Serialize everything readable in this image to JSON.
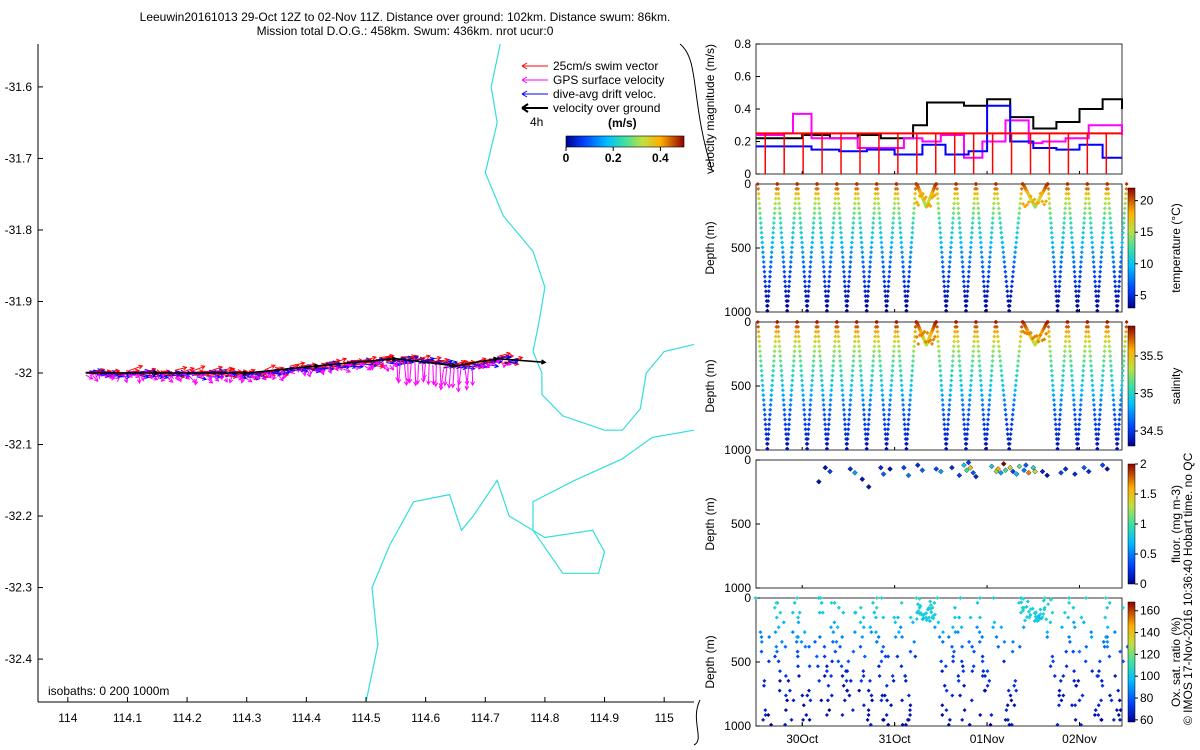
{
  "title": {
    "line1": "Leeuwin20161013 29-Oct 12Z to 02-Nov 11Z. Distance over ground: 102km. Distance swum: 86km.",
    "line2": "Mission total D.O.G.: 458km. Swum: 436km. nrot ucur:0"
  },
  "chart_data": [
    {
      "type": "map",
      "xlim": [
        113.95,
        115.05
      ],
      "ylim": [
        -32.46,
        -31.54
      ],
      "xticks": [
        "114",
        "114.1",
        "114.2",
        "114.3",
        "114.4",
        "114.5",
        "114.6",
        "114.7",
        "114.8",
        "114.9",
        "115"
      ],
      "xtick_values": [
        114,
        114.1,
        114.2,
        114.3,
        114.4,
        114.5,
        114.6,
        114.7,
        114.8,
        114.9,
        115
      ],
      "yticks": [
        "-31.6",
        "-31.7",
        "-31.8",
        "-31.9",
        "-32",
        "-32.1",
        "-32.2",
        "-32.3",
        "-32.4"
      ],
      "ytick_values": [
        -31.6,
        -31.7,
        -31.8,
        -31.9,
        -32.0,
        -32.1,
        -32.2,
        -32.3,
        -32.4
      ],
      "legend": {
        "placement": "top-right",
        "entries": [
          {
            "label": "25cm/s swim vector",
            "color": "#ff0000"
          },
          {
            "label": "GPS surface velocity",
            "color": "#ff00ff"
          },
          {
            "label": "dive-avg drift veloc.",
            "color": "#0000ff"
          },
          {
            "label": "velocity over ground",
            "color": "#000000"
          }
        ],
        "time_marker": "4h",
        "colorbar_title": "(m/s)",
        "colorbar_ticks": [
          "0",
          "0.2",
          "0.4"
        ],
        "colorbar_values": [
          0,
          0.2,
          0.4
        ],
        "colorbar_range": [
          0,
          0.5
        ]
      },
      "isobaths_label": "isobaths: 0   200  1000m",
      "track": {
        "lon": [
          114.03,
          114.15,
          114.3,
          114.42,
          114.55,
          114.65,
          114.72,
          114.8
        ],
        "lat": [
          -32.0,
          -32.0,
          -32.0,
          -31.99,
          -31.98,
          -31.99,
          -31.98,
          -31.985
        ]
      },
      "isobath_color": "#33dddd"
    },
    {
      "type": "line",
      "ylabel": "velocity magnitude (m/s)",
      "ylim": [
        0,
        0.8
      ],
      "yticks": [
        "0",
        "0.2",
        "0.4",
        "0.6",
        "0.8"
      ],
      "ytick_values": [
        0,
        0.2,
        0.4,
        0.6,
        0.8
      ],
      "xlim": [
        29.5,
        33.46
      ],
      "series": [
        {
          "color": "#000000",
          "x": [
            29.5,
            29.75,
            30.0,
            30.3,
            30.6,
            30.85,
            31.0,
            31.2,
            31.35,
            31.5,
            31.75,
            32.0,
            32.25,
            32.5,
            32.75,
            33.0,
            33.25,
            33.46
          ],
          "y": [
            0.22,
            0.22,
            0.24,
            0.22,
            0.24,
            0.22,
            0.22,
            0.3,
            0.44,
            0.44,
            0.42,
            0.46,
            0.35,
            0.28,
            0.32,
            0.4,
            0.46,
            0.4
          ]
        },
        {
          "color": "#ff00ff",
          "x": [
            29.5,
            29.8,
            29.9,
            30.1,
            30.3,
            30.6,
            30.9,
            31.1,
            31.3,
            31.5,
            31.75,
            31.95,
            32.2,
            32.45,
            32.6,
            32.85,
            33.1,
            33.3,
            33.46
          ],
          "y": [
            0.24,
            0.25,
            0.37,
            0.22,
            0.22,
            0.16,
            0.16,
            0.22,
            0.2,
            0.24,
            0.1,
            0.2,
            0.33,
            0.19,
            0.2,
            0.22,
            0.3,
            0.3,
            0.24
          ]
        },
        {
          "color": "#0000ff",
          "x": [
            29.5,
            29.8,
            30.1,
            30.4,
            30.7,
            31.0,
            31.3,
            31.55,
            31.8,
            32.0,
            32.25,
            32.5,
            32.75,
            33.0,
            33.25,
            33.46
          ],
          "y": [
            0.17,
            0.17,
            0.15,
            0.14,
            0.15,
            0.12,
            0.18,
            0.12,
            0.14,
            0.42,
            0.2,
            0.16,
            0.15,
            0.18,
            0.1,
            0.1
          ]
        },
        {
          "color": "#ff0000",
          "x": [
            29.5,
            29.6,
            29.9,
            30.2,
            30.5,
            30.8,
            31.1,
            31.4,
            31.7,
            31.9,
            32.1,
            32.4,
            32.7,
            33.0,
            33.3,
            33.46
          ],
          "y": [
            0.25,
            0.25,
            0.25,
            0.25,
            0.25,
            0.25,
            0.25,
            0.25,
            0.25,
            0.25,
            0.25,
            0.25,
            0.25,
            0.25,
            0.25,
            0.25
          ]
        }
      ]
    },
    {
      "type": "scatter",
      "ylabel": "Depth (m)",
      "yticks": [
        "0",
        "500",
        "1000"
      ],
      "ytick_values": [
        0,
        500,
        1000
      ],
      "ylim": [
        1000,
        0
      ],
      "colorbar_label": "temperature (°C)",
      "colorbar_ticks": [
        "5",
        "10",
        "15",
        "20"
      ],
      "colorbar_values": [
        5,
        10,
        15,
        20
      ],
      "colorbar_range": [
        3,
        22
      ],
      "profile": {
        "depth": [
          0,
          50,
          100,
          200,
          300,
          500,
          700,
          900,
          1000
        ],
        "value": [
          21,
          19,
          16,
          14,
          12,
          9,
          6,
          4,
          3
        ]
      }
    },
    {
      "type": "scatter",
      "ylabel": "Depth (m)",
      "yticks": [
        "0",
        "500",
        "1000"
      ],
      "ytick_values": [
        0,
        500,
        1000
      ],
      "ylim": [
        1000,
        0
      ],
      "colorbar_label": "salinity",
      "colorbar_ticks": [
        "34.5",
        "35",
        "35.5"
      ],
      "colorbar_values": [
        34.5,
        35,
        35.5
      ],
      "colorbar_range": [
        34.3,
        35.9
      ],
      "profile": {
        "depth": [
          0,
          50,
          100,
          200,
          300,
          500,
          700,
          900,
          1000
        ],
        "value": [
          35.85,
          35.7,
          35.5,
          35.3,
          35.15,
          34.9,
          34.6,
          34.45,
          34.35
        ]
      }
    },
    {
      "type": "scatter",
      "ylabel": "Depth (m)",
      "yticks": [
        "0",
        "500",
        "1000"
      ],
      "ytick_values": [
        0,
        500,
        1000
      ],
      "ylim": [
        1000,
        0
      ],
      "colorbar_label": "fluor. (mg m-3)",
      "colorbar_ticks": [
        "0",
        "0.5",
        "1",
        "1.5",
        "2"
      ],
      "colorbar_values": [
        0,
        0.5,
        1,
        1.5,
        2
      ],
      "colorbar_range": [
        0,
        2
      ],
      "points": [
        {
          "t": 30.25,
          "d": 60,
          "v": 0.1
        },
        {
          "t": 30.3,
          "d": 90,
          "v": 0.3
        },
        {
          "t": 30.18,
          "d": 170,
          "v": 0.1
        },
        {
          "t": 30.52,
          "d": 70,
          "v": 0.2
        },
        {
          "t": 30.57,
          "d": 100,
          "v": 0.6
        },
        {
          "t": 30.65,
          "d": 150,
          "v": 0.1
        },
        {
          "t": 30.72,
          "d": 210,
          "v": 0.1
        },
        {
          "t": 30.85,
          "d": 60,
          "v": 0.2
        },
        {
          "t": 30.88,
          "d": 110,
          "v": 0.4
        },
        {
          "t": 30.95,
          "d": 70,
          "v": 0.1
        },
        {
          "t": 31.1,
          "d": 60,
          "v": 0.3
        },
        {
          "t": 31.15,
          "d": 120,
          "v": 0.5
        },
        {
          "t": 31.25,
          "d": 40,
          "v": 0.2
        },
        {
          "t": 31.3,
          "d": 80,
          "v": 0.4
        },
        {
          "t": 31.45,
          "d": 70,
          "v": 0.3
        },
        {
          "t": 31.5,
          "d": 90,
          "v": 0.6
        },
        {
          "t": 31.62,
          "d": 60,
          "v": 0.2
        },
        {
          "t": 31.7,
          "d": 120,
          "v": 0.3
        },
        {
          "t": 31.75,
          "d": 40,
          "v": 0.8
        },
        {
          "t": 31.78,
          "d": 80,
          "v": 1.0
        },
        {
          "t": 31.82,
          "d": 60,
          "v": 1.5
        },
        {
          "t": 31.85,
          "d": 100,
          "v": 0.4
        },
        {
          "t": 31.88,
          "d": 130,
          "v": 0.2
        },
        {
          "t": 31.8,
          "d": 20,
          "v": 0.3
        },
        {
          "t": 32.05,
          "d": 50,
          "v": 0.8
        },
        {
          "t": 32.1,
          "d": 90,
          "v": 1.2
        },
        {
          "t": 32.12,
          "d": 70,
          "v": 1.6
        },
        {
          "t": 32.15,
          "d": 100,
          "v": 0.6
        },
        {
          "t": 32.2,
          "d": 80,
          "v": 1.0
        },
        {
          "t": 32.25,
          "d": 60,
          "v": 1.4
        },
        {
          "t": 32.28,
          "d": 90,
          "v": 0.3
        },
        {
          "t": 32.32,
          "d": 110,
          "v": 0.7
        },
        {
          "t": 32.35,
          "d": 50,
          "v": 1.1
        },
        {
          "t": 32.4,
          "d": 80,
          "v": 0.5
        },
        {
          "t": 32.45,
          "d": 100,
          "v": 1.7
        },
        {
          "t": 32.5,
          "d": 60,
          "v": 0.9
        },
        {
          "t": 32.52,
          "d": 90,
          "v": 1.3
        },
        {
          "t": 32.18,
          "d": 30,
          "v": 2.0
        },
        {
          "t": 32.42,
          "d": 40,
          "v": 0.4
        },
        {
          "t": 32.6,
          "d": 90,
          "v": 0.2
        },
        {
          "t": 32.65,
          "d": 120,
          "v": 0.1
        },
        {
          "t": 32.8,
          "d": 100,
          "v": 0.3
        },
        {
          "t": 32.85,
          "d": 70,
          "v": 0.2
        },
        {
          "t": 32.95,
          "d": 110,
          "v": 0.2
        },
        {
          "t": 33.05,
          "d": 60,
          "v": 0.4
        },
        {
          "t": 33.1,
          "d": 90,
          "v": 0.2
        },
        {
          "t": 33.25,
          "d": 40,
          "v": 0.3
        },
        {
          "t": 33.3,
          "d": 70,
          "v": 0.1
        }
      ]
    },
    {
      "type": "scatter",
      "ylabel": "Depth (m)",
      "yticks": [
        "0",
        "500",
        "1000"
      ],
      "ytick_values": [
        0,
        500,
        1000
      ],
      "ylim": [
        1000,
        0
      ],
      "xticks": [
        "30Oct",
        "31Oct",
        "01Nov",
        "02Nov"
      ],
      "xtick_values": [
        30,
        31,
        32,
        33
      ],
      "colorbar_label": "Ox. sat. ratio (%)",
      "colorbar_ticks": [
        "60",
        "80",
        "100",
        "120",
        "140",
        "160"
      ],
      "colorbar_values": [
        60,
        80,
        100,
        120,
        140,
        160
      ],
      "colorbar_range": [
        58,
        168
      ],
      "profile": {
        "depth": [
          0,
          100,
          200,
          300,
          400,
          500,
          600,
          800,
          1000
        ],
        "value": [
          105,
          103,
          95,
          88,
          80,
          72,
          68,
          65,
          62
        ]
      }
    }
  ],
  "side_note": "© IMOS 17-Nov-2016 10:36:40 Hobart time. no QC"
}
